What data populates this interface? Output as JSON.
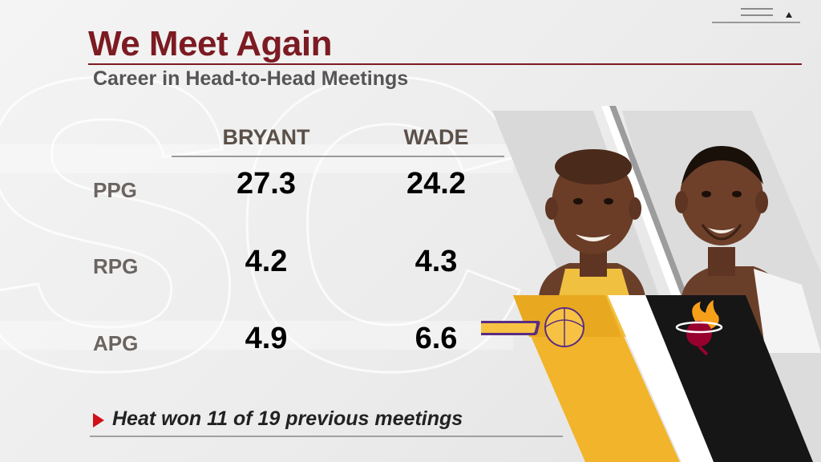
{
  "header": {
    "title": "We Meet Again",
    "subtitle": "Career in Head-to-Head Meetings"
  },
  "columns": [
    "BRYANT",
    "WADE"
  ],
  "rows": [
    {
      "label": "PPG",
      "values": [
        "27.3",
        "24.2"
      ]
    },
    {
      "label": "RPG",
      "values": [
        "4.2",
        "4.3"
      ]
    },
    {
      "label": "APG",
      "values": [
        "4.9",
        "6.6"
      ]
    }
  ],
  "footer": {
    "note": "Heat won 11 of 19 previous meetings"
  },
  "players": [
    {
      "name_icon": "player-headshot-bryant",
      "team_logo": "lakers-logo",
      "team_color": "#f2b42a"
    },
    {
      "name_icon": "player-headshot-wade",
      "team_logo": "heat-logo",
      "team_color": "#161616"
    }
  ],
  "colors": {
    "title": "#7c1b22",
    "accent": "#d0101a"
  }
}
